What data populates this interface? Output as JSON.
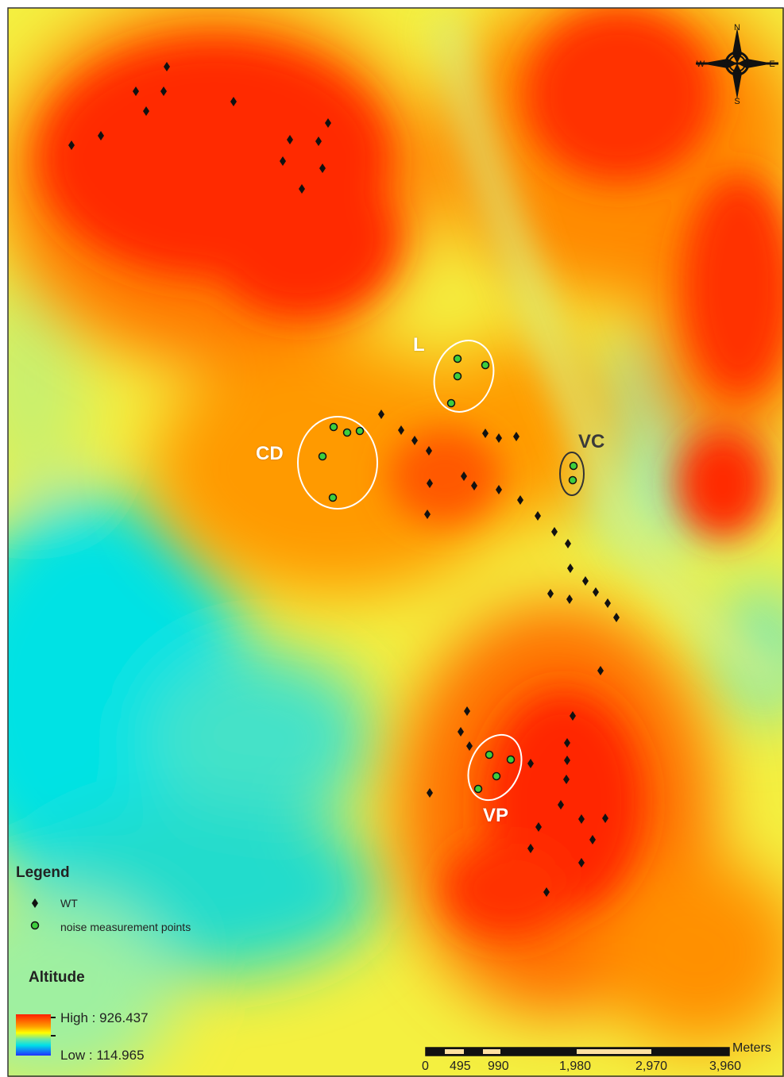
{
  "clusters": {
    "L": "L",
    "CD": "CD",
    "VC": "VC",
    "VP": "VP"
  },
  "compass": {
    "n": "N",
    "s": "S",
    "e": "E",
    "w": "W"
  },
  "legend": {
    "title": "Legend",
    "wt": "WT",
    "noise": "noise measurement points"
  },
  "altitude": {
    "title": "Altitude",
    "high": "High : 926.437",
    "low": "Low : 114.965",
    "high_value": 926.437,
    "low_value": 114.965
  },
  "scalebar": {
    "unit": "Meters",
    "ticks": [
      "0",
      "495",
      "990",
      "1,980",
      "2,970",
      "3,960"
    ]
  },
  "colors": {
    "high": "#ff2200",
    "orange": "#ff8c00",
    "yellow": "#ffff00",
    "green_low": "#7fe89a",
    "low": "#00e5e5",
    "wt_marker": "#111111",
    "noise_marker": "#3dcf3d"
  }
}
